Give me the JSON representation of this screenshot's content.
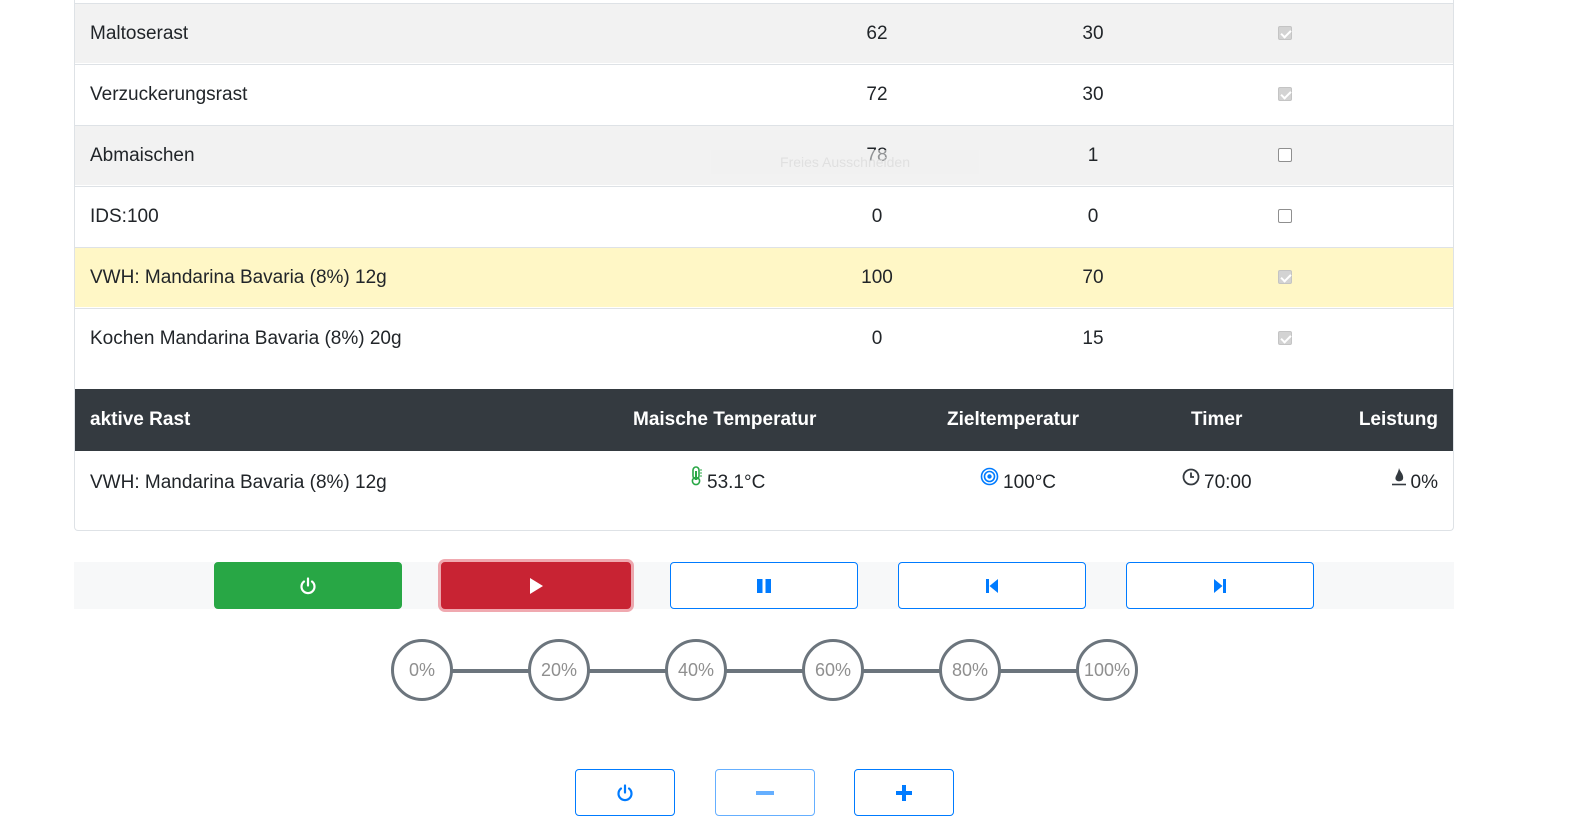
{
  "rests": [
    {
      "name": "Maltoserast",
      "temp": "62",
      "duration": "30",
      "checked": true
    },
    {
      "name": "Verzuckerungsrast",
      "temp": "72",
      "duration": "30",
      "checked": true
    },
    {
      "name": "Abmaischen",
      "temp": "78",
      "duration": "1",
      "checked": false
    },
    {
      "name": "IDS:100",
      "temp": "0",
      "duration": "0",
      "checked": false
    },
    {
      "name": "VWH: Mandarina Bavaria (8%) 12g",
      "temp": "100",
      "duration": "70",
      "checked": true,
      "highlight": true
    },
    {
      "name": "Kochen Mandarina Bavaria (8%) 20g",
      "temp": "0",
      "duration": "15",
      "checked": true
    }
  ],
  "overlay_text": "Freies Ausschneiden",
  "active": {
    "headers": {
      "rest": "aktive Rast",
      "mash_temp": "Maische Temperatur",
      "target_temp": "Zieltemperatur",
      "timer": "Timer",
      "power": "Leistung"
    },
    "rest": "VWH: Mandarina Bavaria (8%) 12g",
    "mash_temp": "53.1°C",
    "target_temp": "100°C",
    "timer": "70:00",
    "power": "0%",
    "icons": [
      "thermometer-icon",
      "target-icon",
      "clock-icon",
      "flame-icon"
    ]
  },
  "controls": [
    "power-icon",
    "play-icon",
    "pause-icon",
    "skip-back-icon",
    "skip-forward-icon"
  ],
  "power_steps": [
    "0%",
    "20%",
    "40%",
    "60%",
    "80%",
    "100%"
  ],
  "small_controls": [
    "power-icon",
    "minus-icon",
    "plus-icon"
  ],
  "colors": {
    "dark_header": "#343a40",
    "success": "#28a745",
    "danger": "#c82333",
    "primary": "#007bff",
    "highlight_row": "#fff7c6",
    "striped_row": "#f2f2f2"
  }
}
